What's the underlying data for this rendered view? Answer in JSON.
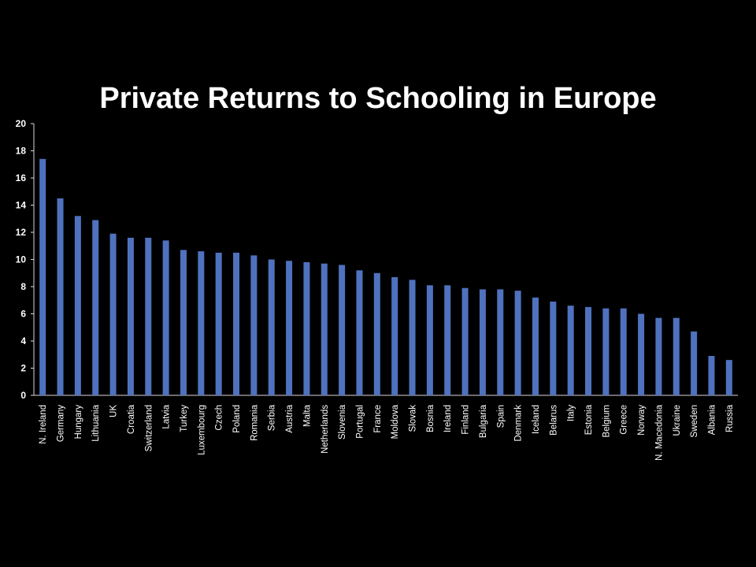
{
  "chart_data": {
    "type": "bar",
    "title": "Private Returns to Schooling in Europe",
    "xlabel": "",
    "ylabel": "",
    "ylim": [
      0,
      20
    ],
    "yticks": [
      0,
      2,
      4,
      6,
      8,
      10,
      12,
      14,
      16,
      18,
      20
    ],
    "grid": false,
    "legend": "none",
    "bar_color": "#4f72be",
    "categories": [
      "N. Ireland",
      "Germany",
      "Hungary",
      "Lithuania",
      "UK",
      "Croatia",
      "Switzerland",
      "Latvia",
      "Turkey",
      "Luxembourg",
      "Czech",
      "Poland",
      "Romania",
      "Serbia",
      "Austria",
      "Malta",
      "Netherlands",
      "Slovenia",
      "Portugal",
      "France",
      "Moldova",
      "Slovak",
      "Bosnia",
      "Ireland",
      "Finland",
      "Bulgaria",
      "Spain",
      "Denmark",
      "Iceland",
      "Belarus",
      "Italy",
      "Estonia",
      "Belgium",
      "Greece",
      "Norway",
      "N. Macedonia",
      "Ukraine",
      "Sweden",
      "Albania",
      "Russia"
    ],
    "values": [
      17.4,
      14.5,
      13.2,
      12.9,
      11.9,
      11.6,
      11.6,
      11.4,
      10.7,
      10.6,
      10.5,
      10.5,
      10.3,
      10.0,
      9.9,
      9.8,
      9.7,
      9.6,
      9.2,
      9.0,
      8.7,
      8.5,
      8.1,
      8.1,
      7.9,
      7.8,
      7.8,
      7.7,
      7.2,
      6.9,
      6.6,
      6.5,
      6.4,
      6.4,
      6.0,
      5.7,
      5.7,
      4.7,
      2.9,
      2.6
    ]
  }
}
